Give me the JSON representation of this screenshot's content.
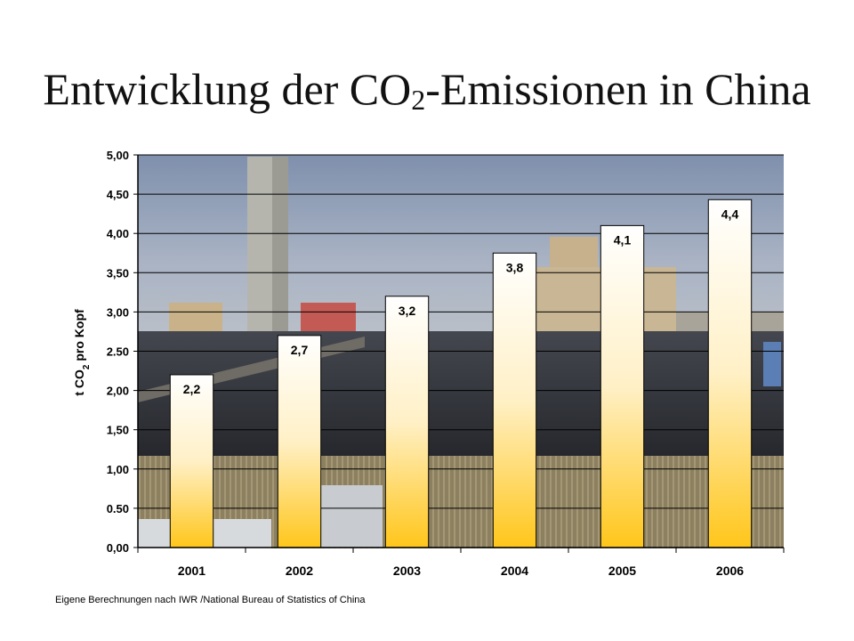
{
  "slide": {
    "title_prefix": "Entwicklung der CO",
    "title_sub": "2",
    "title_suffix": "-Emissionen in China",
    "source_note": "Eigene Berechnungen nach IWR /National Bureau of Statistics of China"
  },
  "chart_data": {
    "type": "bar",
    "title": "Entwicklung der CO2-Emissionen in China",
    "categories": [
      "2001",
      "2002",
      "2003",
      "2004",
      "2005",
      "2006"
    ],
    "values": [
      2.2,
      2.7,
      3.2,
      3.75,
      4.1,
      4.43
    ],
    "data_labels": [
      "2,2",
      "2,7",
      "3,2",
      "3,8",
      "4,1",
      "4,4"
    ],
    "ylabel": "t CO2 pro Kopf",
    "ylabel_parts": {
      "prefix": "t CO",
      "sub": "2",
      "suffix": " pro Kopf"
    },
    "xlabel": "",
    "ylim": [
      0,
      5
    ],
    "yticks": [
      "0,00",
      "0.50",
      "1,00",
      "1,50",
      "2,00",
      "2.50",
      "3,00",
      "3,50",
      "4,00",
      "4,50",
      "5,00"
    ],
    "grid": true,
    "legend": "none",
    "colors": {
      "bar_top": "#ffffff",
      "bar_bottom": "#ffc61a",
      "bar_border": "#000000",
      "gridline": "#000000",
      "plot_background_sky": "#8e9eb8",
      "plot_background_ground": "#3a3d44"
    }
  }
}
